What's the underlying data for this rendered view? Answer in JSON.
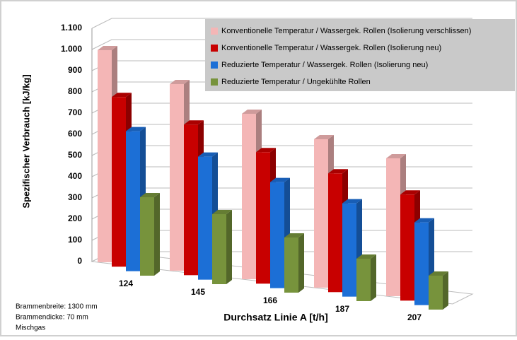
{
  "chart_data": {
    "type": "bar3d",
    "y_label": "Spezifischer Verbrauch [kJ/kg]",
    "x_label": "Durchsatz Linie A [t/h]",
    "categories": [
      "124",
      "145",
      "166",
      "187",
      "207"
    ],
    "series": [
      {
        "name": "Konventionelle Temperatur / Wassergek. Rollen (Isolierung verschlissen)",
        "color": "#f4b6b6",
        "values": [
          1000,
          880,
          780,
          700,
          650
        ]
      },
      {
        "name": "Konventionelle Temperatur / Wassergek. Rollen (Isolierung neu)",
        "color": "#c80000",
        "values": [
          800,
          710,
          620,
          560,
          500
        ]
      },
      {
        "name": "Reduzierte Temperatur / Wassergek. Rollen (Isolierung neu)",
        "color": "#1c6fd6",
        "values": [
          660,
          580,
          500,
          440,
          390
        ]
      },
      {
        "name": "Reduzierte Temperatur / Ungekühlte Rollen",
        "color": "#77933c",
        "values": [
          370,
          330,
          260,
          200,
          160
        ]
      }
    ],
    "ylim": [
      0,
      1100
    ],
    "yticks": [
      0,
      100,
      200,
      300,
      400,
      500,
      600,
      700,
      800,
      900,
      {
        "value": 1000,
        "label": "1.000"
      },
      {
        "value": 1100,
        "label": "1.100"
      }
    ],
    "grid": true,
    "legend": "upper right",
    "notes": [
      "Brammenbreite: 1300 mm",
      "Brammendicke: 70 mm",
      "Mischgas"
    ]
  }
}
